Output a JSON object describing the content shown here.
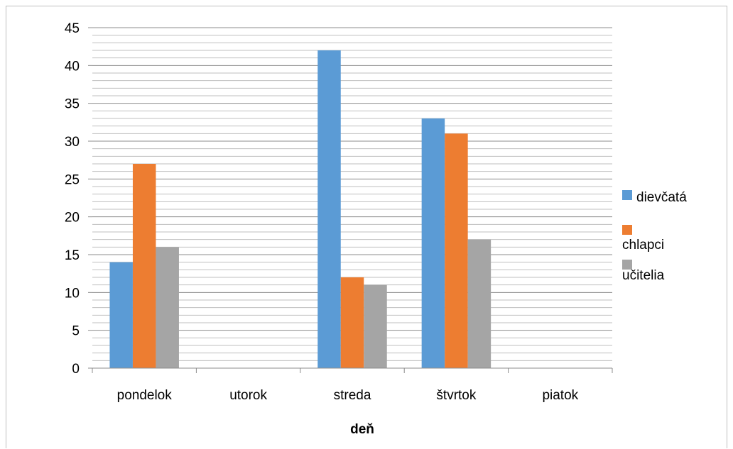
{
  "chart_data": {
    "type": "bar",
    "categories": [
      "pondelok",
      "utorok",
      "streda",
      "štvrtok",
      "piatok"
    ],
    "series": [
      {
        "name": "dievčatá",
        "values": [
          14,
          0,
          42,
          33,
          0
        ],
        "color": "#5B9BD5"
      },
      {
        "name": "chlapci",
        "values": [
          27,
          0,
          12,
          31,
          0
        ],
        "color": "#ED7D31"
      },
      {
        "name": "učitelia",
        "values": [
          16,
          0,
          11,
          17,
          0
        ],
        "color": "#A5A5A5"
      }
    ],
    "title": "",
    "xlabel": "deň",
    "ylabel": "",
    "ylim": [
      0,
      45
    ],
    "y_major_ticks": [
      0,
      5,
      10,
      15,
      20,
      25,
      30,
      35,
      40,
      45
    ],
    "minor_grid_step": 1,
    "grid": true,
    "legend": "right"
  }
}
